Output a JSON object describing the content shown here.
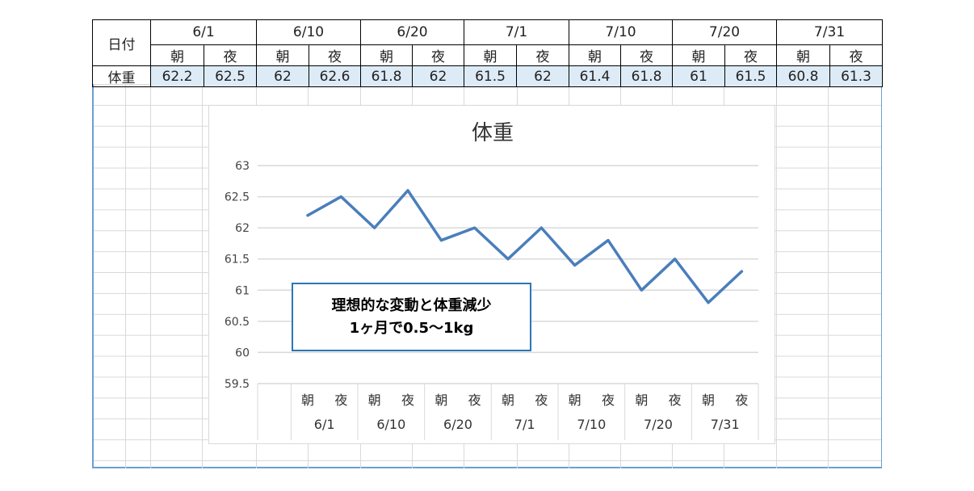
{
  "table": {
    "date_label": "日付",
    "weight_label": "体重",
    "dates": [
      "6/1",
      "6/10",
      "6/20",
      "7/1",
      "7/10",
      "7/20",
      "7/31"
    ],
    "slots": [
      "朝",
      "夜"
    ],
    "values": [
      "62.2",
      "62.5",
      "62",
      "62.6",
      "61.8",
      "62",
      "61.5",
      "62",
      "61.4",
      "61.8",
      "61",
      "61.5",
      "60.8",
      "61.3"
    ]
  },
  "chart_data": {
    "type": "line",
    "title": "体重",
    "categories": [
      "",
      "朝",
      "夜",
      "朝",
      "夜",
      "朝",
      "夜",
      "朝",
      "夜",
      "朝",
      "夜",
      "朝",
      "夜",
      "朝",
      "夜"
    ],
    "groups": [
      "6/1",
      "6/10",
      "6/20",
      "7/1",
      "7/10",
      "7/20",
      "7/31"
    ],
    "values": [
      null,
      62.2,
      62.5,
      62,
      62.6,
      61.8,
      62,
      61.5,
      62,
      61.4,
      61.8,
      61,
      61.5,
      60.8,
      61.3
    ],
    "ylim": [
      59.5,
      63
    ],
    "yticks": [
      "59.5",
      "60",
      "60.5",
      "61",
      "61.5",
      "62",
      "62.5",
      "63"
    ],
    "grid": true,
    "line_color": "#4a7ebb",
    "annotation": [
      "理想的な変動と体重減少",
      "1ヶ月で0.5～1kg"
    ]
  }
}
